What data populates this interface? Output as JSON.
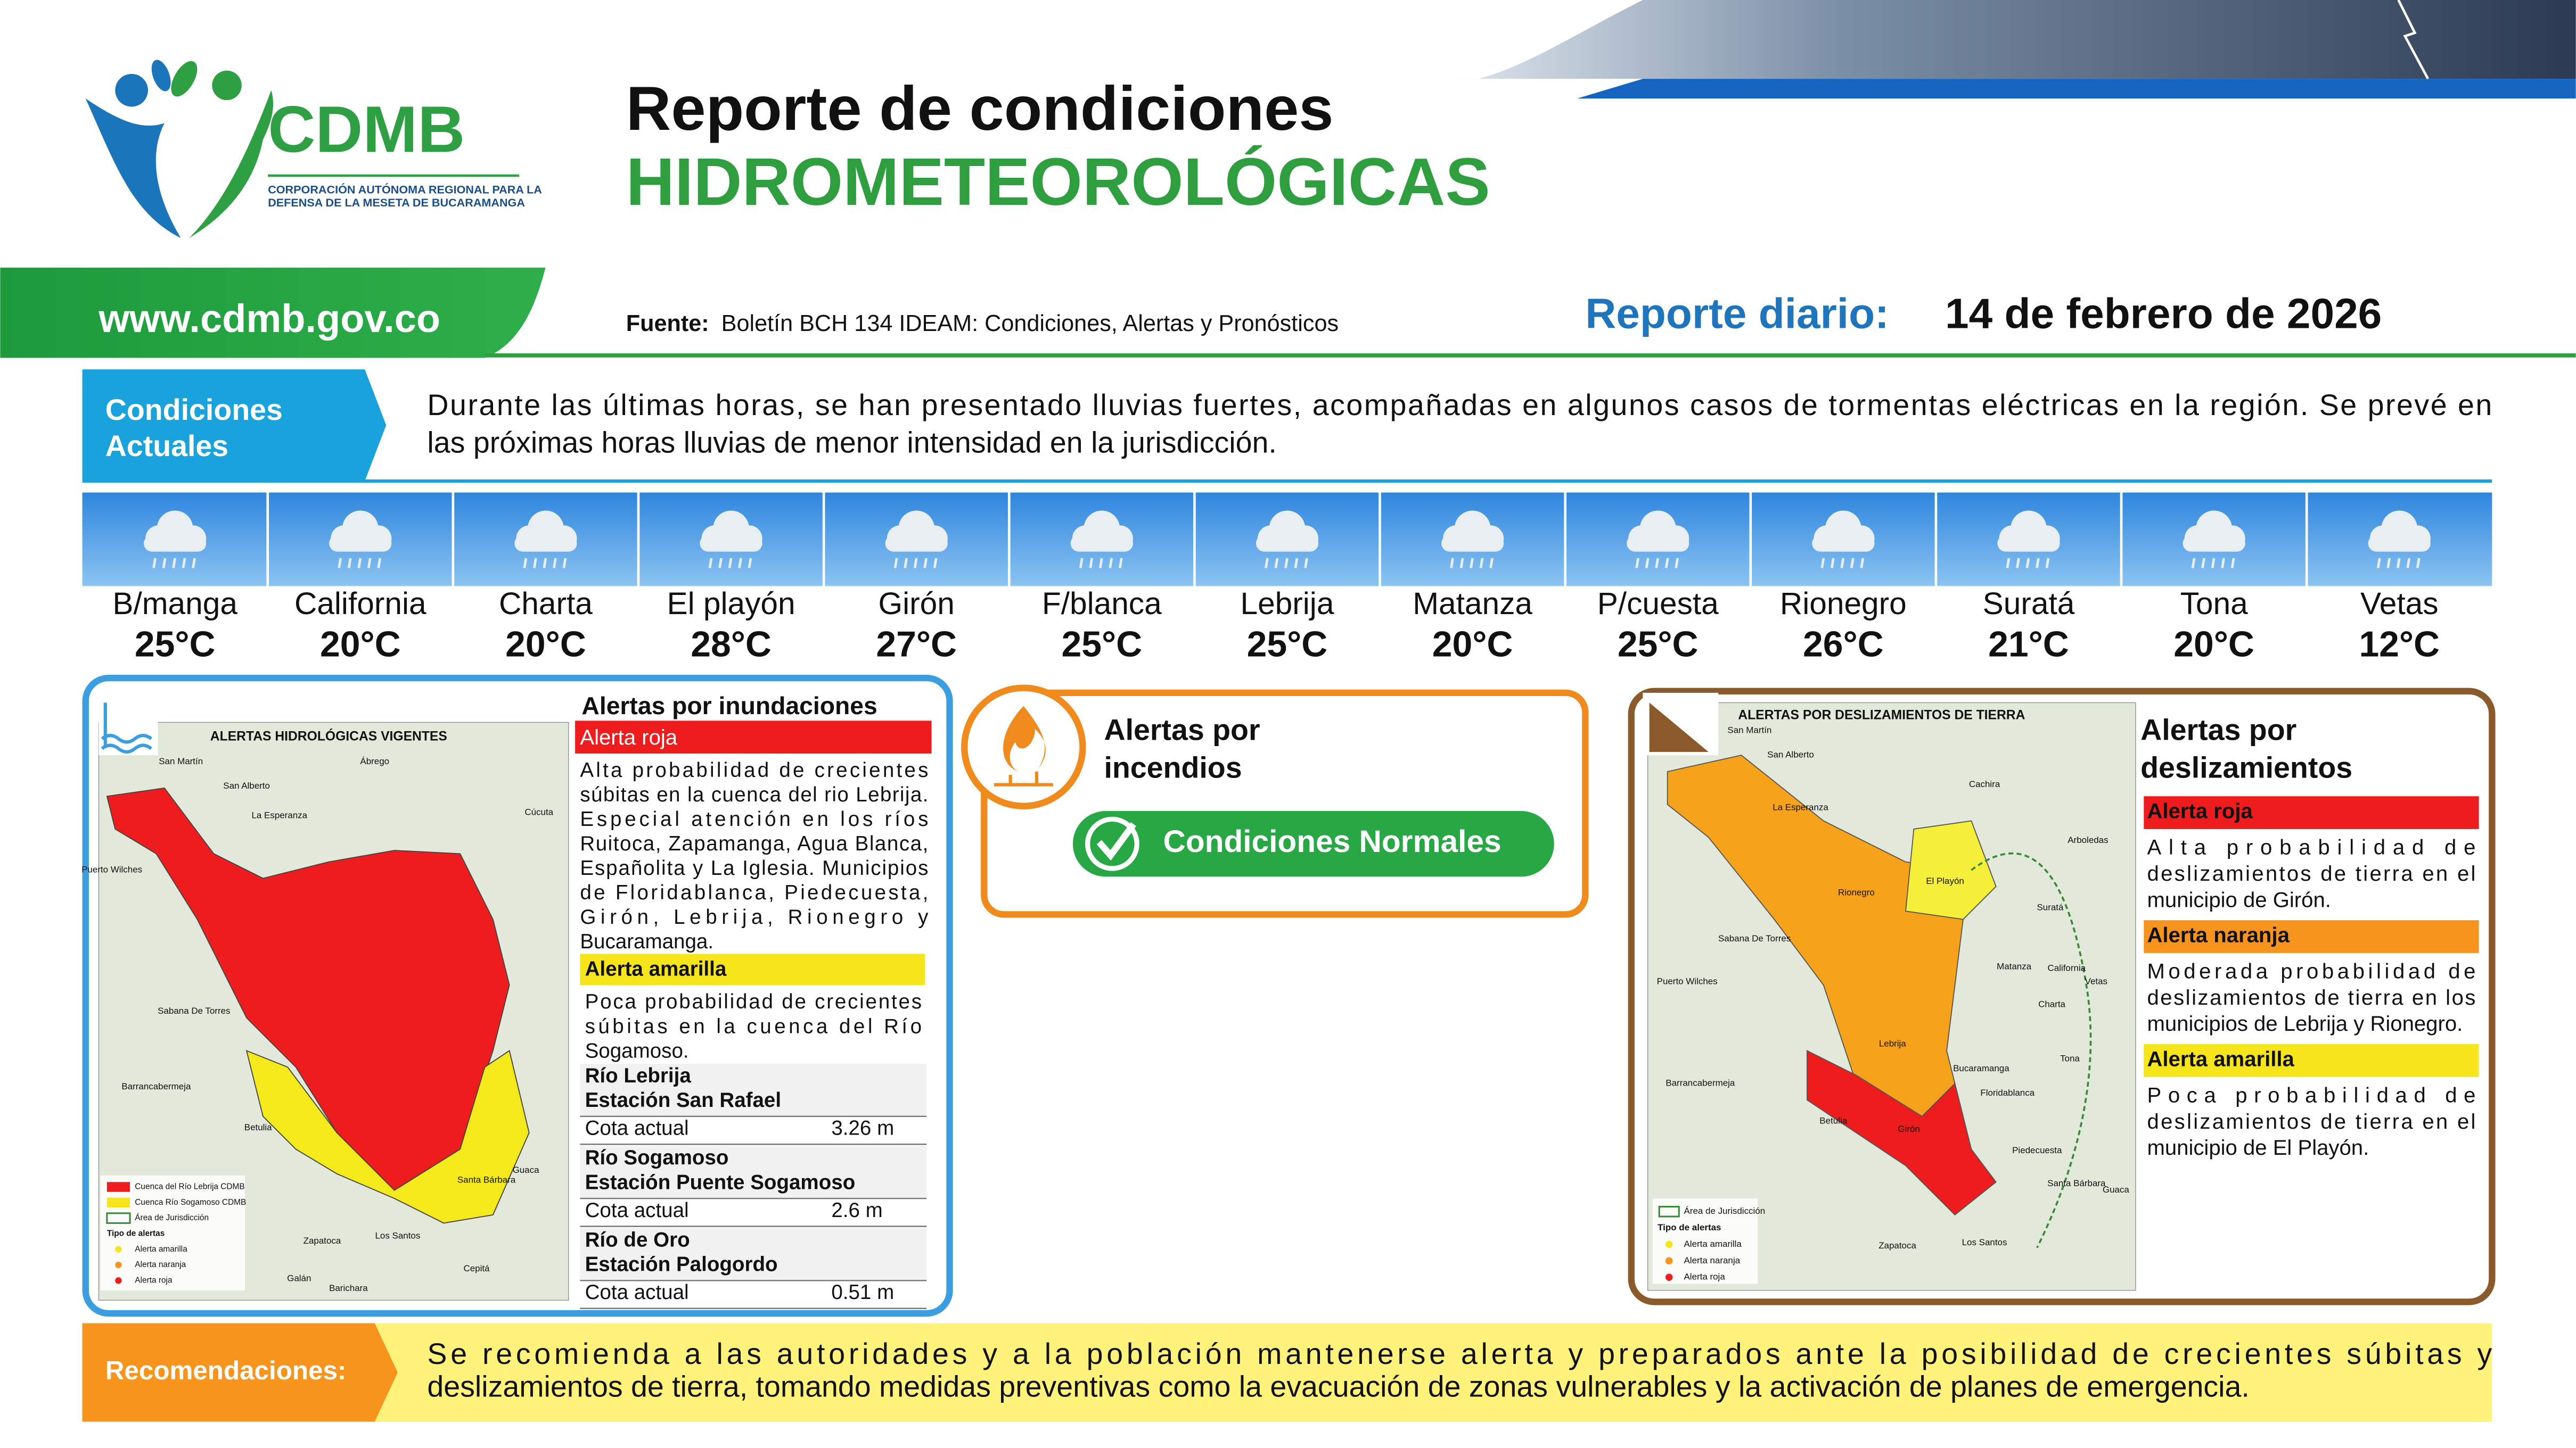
{
  "header": {
    "logo_text": "CDMB",
    "logo_subtitle": [
      "CORPORACIÓN AUTÓNOMA REGIONAL PARA LA",
      "DEFENSA DE LA MESETA DE BUCARAMANGA"
    ],
    "title_line1": "Reporte de condiciones",
    "title_line2": "HIDROMETEOROLÓGICAS",
    "website": "www.cdmb.gov.co",
    "source_label": "Fuente:",
    "source_text": "Boletín BCH 134 IDEAM: Condiciones, Alertas y Pronósticos",
    "report_label": "Reporte diario:",
    "report_date": "14 de febrero de 2026"
  },
  "current_conditions": {
    "label_lines": [
      "Condiciones",
      "Actuales"
    ],
    "text_lines": [
      "Durante las últimas horas, se han presentado lluvias fuertes, acompañadas en algunos casos de tormentas eléctricas en la región. Se prevé en",
      "las próximas horas lluvias de menor intensidad en la jurisdicción."
    ]
  },
  "weather": [
    {
      "city": "B/manga",
      "temp": "25°C"
    },
    {
      "city": "California",
      "temp": "20°C"
    },
    {
      "city": "Charta",
      "temp": "20°C"
    },
    {
      "city": "El playón",
      "temp": "28°C"
    },
    {
      "city": "Girón",
      "temp": "27°C"
    },
    {
      "city": "F/blanca",
      "temp": "25°C"
    },
    {
      "city": "Lebrija",
      "temp": "25°C"
    },
    {
      "city": "Matanza",
      "temp": "20°C"
    },
    {
      "city": "P/cuesta",
      "temp": "25°C"
    },
    {
      "city": "Rionegro",
      "temp": "26°C"
    },
    {
      "city": "Suratá",
      "temp": "21°C"
    },
    {
      "city": "Tona",
      "temp": "20°C"
    },
    {
      "city": "Vetas",
      "temp": "12°C"
    }
  ],
  "flood_alerts": {
    "title": "Alertas por inundaciones",
    "map_title": "ALERTAS HIDROLÓGICAS VIGENTES",
    "red": {
      "label": "Alerta roja",
      "lines": [
        "Alta probabilidad de crecientes",
        "súbitas en la cuenca del rio Lebrija.",
        "Especial atención en los ríos",
        "Ruitoca, Zapamanga, Agua Blanca,",
        "Españolita y La Iglesia. Municipios",
        "de Floridablanca, Piedecuesta,",
        "Girón, Lebrija, Rionegro y",
        "Bucaramanga."
      ]
    },
    "yellow": {
      "label": "Alerta amarilla",
      "lines": [
        "Poca probabilidad de crecientes",
        "súbitas en la cuenca del Río",
        "Sogamoso."
      ]
    },
    "stations": [
      {
        "river": "Río Lebrija",
        "station": "Estación San Rafael",
        "level_label": "Cota actual",
        "level": "3.26 m"
      },
      {
        "river": "Río Sogamoso",
        "station": "Estación Puente Sogamoso",
        "level_label": "Cota actual",
        "level": "2.6 m"
      },
      {
        "river": "Río de Oro",
        "station": "Estación Palogordo",
        "level_label": "Cota actual",
        "level": "0.51 m"
      }
    ],
    "map_places": [
      "San Martín",
      "San Alberto",
      "La Esperanza",
      "Puerto Wilches",
      "Sabana De Torres",
      "Barrancabermeja",
      "Betulia",
      "Zapatoca",
      "Los Santos",
      "Galán",
      "Barichara",
      "Cepitá",
      "Guaca",
      "Santa Bárbara",
      "Ábrego",
      "Cúcuta"
    ],
    "map_legend": [
      "Cuenca del Río Lebrija CDMB",
      "Cuenca Río Sogamoso CDMB",
      "Área de Jurisdicción",
      "Tipo de alertas",
      "Alerta amarilla",
      "Alerta naranja",
      "Alerta roja"
    ]
  },
  "fire_alerts": {
    "title_lines": [
      "Alertas por",
      "incendios"
    ],
    "status": "Condiciones Normales"
  },
  "landslide_alerts": {
    "title_lines": [
      "Alertas por",
      "deslizamientos"
    ],
    "map_title": "ALERTAS POR DESLIZAMIENTOS DE TIERRA",
    "alerts": [
      {
        "label": "Alerta roja",
        "lines": [
          "Alta probabilidad de",
          "deslizamientos de tierra en el",
          "municipio de Girón."
        ]
      },
      {
        "label": "Alerta naranja",
        "lines": [
          "Moderada probabilidad de",
          "deslizamientos de tierra en los",
          "municipios de Lebrija y Rionegro."
        ]
      },
      {
        "label": "Alerta amarilla",
        "lines": [
          "Poca probabilidad de",
          "deslizamientos de tierra en el",
          "municipio de El Playón."
        ]
      }
    ],
    "map_places": [
      "San Martín",
      "San Alberto",
      "La Esperanza",
      "Rionegro",
      "El Playón",
      "Lebrija",
      "Girón",
      "Suratá",
      "Matanza",
      "Charta",
      "California",
      "Vetas",
      "Tona",
      "Floridablanca",
      "Piedecuesta",
      "Bucaramanga",
      "Betulia",
      "Zapatoca",
      "Los Santos",
      "Sabana De Torres",
      "Puerto Wilches",
      "Barrancabermeja",
      "Cachira",
      "Arboledas",
      "Guaca",
      "Santa Bárbara"
    ],
    "map_legend": [
      "Área de Jurisdicción",
      "Tipo de alertas",
      "Alerta amarilla",
      "Alerta naranja",
      "Alerta roja"
    ]
  },
  "recommendations": {
    "label": "Recomendaciones:",
    "text_lines": [
      "Se recomienda a las autoridades y a la población mantenerse alerta y preparados ante la posibilidad de crecientes súbitas y",
      "deslizamientos de tierra, tomando medidas preventivas como la evacuación de zonas vulnerables y la activación de planes de emergencia."
    ]
  }
}
